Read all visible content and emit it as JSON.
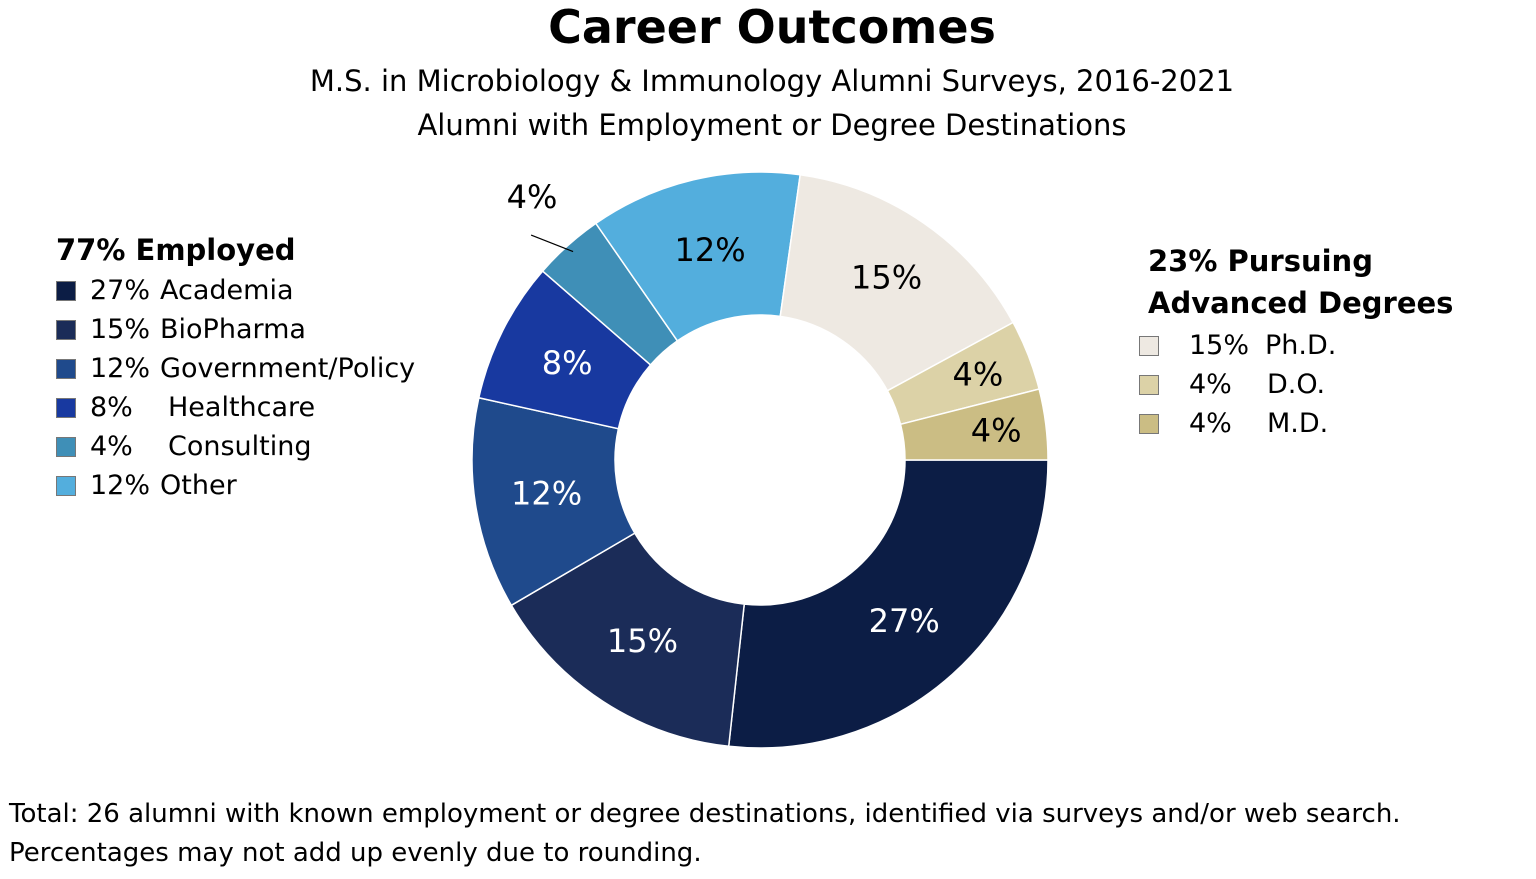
{
  "chart_data": {
    "type": "pie",
    "donut": true,
    "title": "Career Outcomes",
    "subtitle": [
      "M.S. in Microbiology & Immunology Alumni Surveys, 2016-2021",
      "Alumni with Employment or Degree Destinations"
    ],
    "slices": [
      {
        "label": "Academia",
        "value": 27,
        "display": "27%",
        "color": "#0c1d45",
        "group": "employed"
      },
      {
        "label": "BioPharma",
        "value": 15,
        "display": "15%",
        "color": "#1b2c58",
        "group": "employed"
      },
      {
        "label": "Government/Policy",
        "value": 12,
        "display": "12%",
        "color": "#1f4a8c",
        "group": "employed"
      },
      {
        "label": "Healthcare",
        "value": 8,
        "display": "8%",
        "color": "#1839a0",
        "group": "employed"
      },
      {
        "label": "Consulting",
        "value": 4,
        "display": "4%",
        "color": "#3f8fb7",
        "group": "employed"
      },
      {
        "label": "Other",
        "value": 12,
        "display": "12%",
        "color": "#53aedd",
        "group": "employed"
      },
      {
        "label": "Ph.D.",
        "value": 15,
        "display": "15%",
        "color": "#eee9e2",
        "group": "degrees"
      },
      {
        "label": "D.O.",
        "value": 4,
        "display": "4%",
        "color": "#dcd2a7",
        "group": "degrees"
      },
      {
        "label": "M.D.",
        "value": 4,
        "display": "4%",
        "color": "#cbbd84",
        "group": "degrees"
      }
    ],
    "legend": {
      "employed_title": "77% Employed",
      "degrees_title": [
        "23% Pursuing",
        "Advanced Degrees"
      ]
    }
  },
  "footnote": [
    "Total: 26 alumni with known employment or degree destinations, identified via surveys and/or web search.",
    "Percentages may not add up evenly due to rounding."
  ]
}
